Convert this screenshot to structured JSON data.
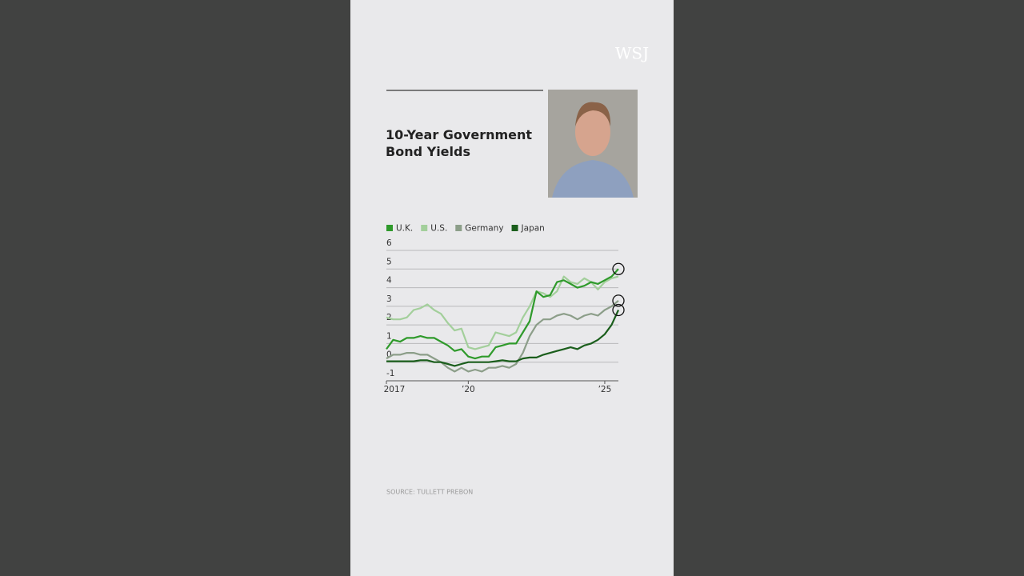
{
  "logo": "WSJ",
  "chart_data": {
    "type": "line",
    "title": "10-Year Government Bond Yields",
    "source": "SOURCE: TULLETT PREBON",
    "x": [
      2017,
      2017.25,
      2017.5,
      2017.75,
      2018,
      2018.25,
      2018.5,
      2018.75,
      2019,
      2019.25,
      2019.5,
      2019.75,
      2020,
      2020.25,
      2020.5,
      2020.75,
      2021,
      2021.25,
      2021.5,
      2021.75,
      2022,
      2022.25,
      2022.5,
      2022.75,
      2023,
      2023.25,
      2023.5,
      2023.75,
      2024,
      2024.25,
      2024.5,
      2024.75,
      2025,
      2025.25,
      2025.5
    ],
    "series": [
      {
        "name": "U.K.",
        "color": "#2f9a2b",
        "values": [
          0.7,
          1.2,
          1.1,
          1.3,
          1.3,
          1.4,
          1.3,
          1.3,
          1.1,
          0.9,
          0.6,
          0.7,
          0.3,
          0.2,
          0.3,
          0.3,
          0.8,
          0.9,
          1.0,
          1.0,
          1.6,
          2.2,
          3.8,
          3.5,
          3.6,
          4.3,
          4.4,
          4.2,
          4.0,
          4.1,
          4.3,
          4.2,
          4.4,
          4.6,
          5.0
        ]
      },
      {
        "name": "U.S.",
        "color": "#a3cf9b",
        "values": [
          2.4,
          2.3,
          2.3,
          2.4,
          2.8,
          2.9,
          3.1,
          2.8,
          2.6,
          2.1,
          1.7,
          1.8,
          0.8,
          0.7,
          0.8,
          0.9,
          1.6,
          1.5,
          1.4,
          1.6,
          2.4,
          3.0,
          3.8,
          3.7,
          3.5,
          3.8,
          4.6,
          4.3,
          4.2,
          4.5,
          4.3,
          3.9,
          4.3,
          4.5,
          4.6
        ]
      },
      {
        "name": "Germany",
        "color": "#8c9e89",
        "values": [
          0.2,
          0.4,
          0.4,
          0.5,
          0.5,
          0.4,
          0.4,
          0.2,
          0.0,
          -0.3,
          -0.5,
          -0.3,
          -0.5,
          -0.4,
          -0.5,
          -0.3,
          -0.3,
          -0.2,
          -0.3,
          -0.1,
          0.5,
          1.4,
          2.0,
          2.3,
          2.3,
          2.5,
          2.6,
          2.5,
          2.3,
          2.5,
          2.6,
          2.5,
          2.8,
          3.0,
          3.3
        ]
      },
      {
        "name": "Japan",
        "color": "#1b5e1c",
        "values": [
          0.05,
          0.05,
          0.05,
          0.05,
          0.05,
          0.1,
          0.1,
          0.0,
          0.0,
          -0.1,
          -0.2,
          -0.1,
          0.0,
          0.0,
          0.0,
          0.0,
          0.05,
          0.1,
          0.05,
          0.05,
          0.2,
          0.25,
          0.25,
          0.4,
          0.5,
          0.6,
          0.7,
          0.8,
          0.7,
          0.9,
          1.0,
          1.2,
          1.5,
          2.0,
          2.8
        ]
      }
    ],
    "xlim": [
      2017,
      2025.5
    ],
    "xticks": [
      {
        "value": 2017,
        "label": "2017"
      },
      {
        "value": 2020,
        "label": "’20"
      },
      {
        "value": 2025,
        "label": "’25"
      }
    ],
    "ylim": [
      -1,
      6
    ],
    "yticks": [
      -1,
      0,
      1,
      2,
      3,
      4,
      5,
      6
    ],
    "grid": true
  }
}
